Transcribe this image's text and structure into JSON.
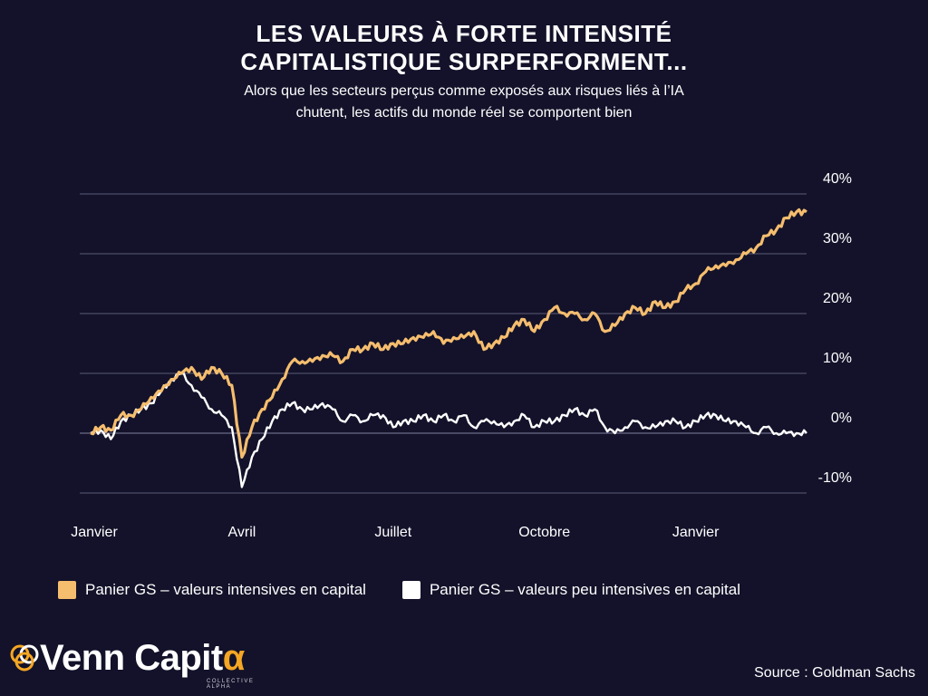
{
  "header": {
    "title_line1": "LES VALEURS À FORTE INTENSITÉ",
    "title_line2": "CAPITALISTIQUE SURPERFORMENT...",
    "subtitle_line1": "Alors que les secteurs perçus comme exposés aux risques liés à l’IA",
    "subtitle_line2": "chutent, les actifs du monde réel se comportent bien"
  },
  "chart_data": {
    "type": "line",
    "y_ticks": [
      -10,
      0,
      10,
      20,
      30,
      40
    ],
    "y_tick_labels": [
      "-10%",
      "0%",
      "10%",
      "20%",
      "30%",
      "40%"
    ],
    "ylim": [
      -10,
      40
    ],
    "y_axis_position": "right",
    "grid": true,
    "x_ticks": [
      {
        "label": "Janvier",
        "x": 0
      },
      {
        "label": "Avril",
        "x": 3
      },
      {
        "label": "Juillet",
        "x": 6
      },
      {
        "label": "Octobre",
        "x": 9
      },
      {
        "label": "Janvier",
        "x": 12
      }
    ],
    "xlim": [
      0,
      14.2
    ],
    "series": [
      {
        "name": "Panier GS – valeurs intensives en capital",
        "color": "#f5bd6e",
        "x": [
          0,
          0.2,
          0.4,
          0.6,
          0.8,
          1,
          1.2,
          1.4,
          1.6,
          1.8,
          2,
          2.2,
          2.4,
          2.6,
          2.8,
          3,
          3.2,
          3.4,
          3.6,
          3.8,
          4,
          4.2,
          4.4,
          4.6,
          4.8,
          5,
          5.2,
          5.4,
          5.6,
          5.8,
          6,
          6.2,
          6.4,
          6.6,
          6.8,
          7,
          7.2,
          7.4,
          7.6,
          7.8,
          8,
          8.2,
          8.4,
          8.6,
          8.8,
          9,
          9.2,
          9.4,
          9.6,
          9.8,
          10,
          10.2,
          10.4,
          10.6,
          10.8,
          11,
          11.2,
          11.4,
          11.6,
          11.8,
          12,
          12.2,
          12.4,
          12.6,
          12.8,
          13,
          13.2,
          13.4,
          13.6,
          13.8,
          14,
          14.2
        ],
        "values": [
          0,
          1,
          0.5,
          3,
          3,
          4,
          6,
          7,
          9,
          10,
          11,
          9,
          11,
          10,
          8,
          -4,
          1,
          4,
          6,
          9,
          12,
          12,
          12,
          13,
          13,
          12,
          14,
          14,
          15,
          14,
          15,
          15,
          16,
          16,
          17,
          15,
          16,
          16,
          17,
          14,
          15,
          16,
          18,
          19,
          17,
          19,
          21,
          20,
          20,
          19,
          20,
          17,
          18,
          20,
          21,
          20,
          22,
          21,
          22,
          24,
          25,
          27,
          28,
          28,
          29,
          30,
          31,
          33,
          34,
          36,
          37,
          37
        ]
      },
      {
        "name": "Panier GS – valeurs peu intensives en capital",
        "color": "#ffffff",
        "x": [
          0,
          0.2,
          0.4,
          0.6,
          0.8,
          1,
          1.2,
          1.4,
          1.6,
          1.8,
          2,
          2.2,
          2.4,
          2.6,
          2.8,
          3,
          3.2,
          3.4,
          3.6,
          3.8,
          4,
          4.2,
          4.4,
          4.6,
          4.8,
          5,
          5.2,
          5.4,
          5.6,
          5.8,
          6,
          6.2,
          6.4,
          6.6,
          6.8,
          7,
          7.2,
          7.4,
          7.6,
          7.8,
          8,
          8.2,
          8.4,
          8.6,
          8.8,
          9,
          9.2,
          9.4,
          9.6,
          9.8,
          10,
          10.2,
          10.4,
          10.6,
          10.8,
          11,
          11.2,
          11.4,
          11.6,
          11.8,
          12,
          12.2,
          12.4,
          12.6,
          12.8,
          13,
          13.2,
          13.4,
          13.6,
          13.8,
          14,
          14.2
        ],
        "values": [
          0,
          0.5,
          -1,
          2,
          3,
          4,
          5,
          7,
          9,
          10,
          8,
          6,
          4,
          3,
          1,
          -9,
          -4,
          -1,
          2,
          4,
          5,
          4,
          4,
          5,
          4,
          2,
          3,
          2,
          3,
          3,
          1,
          2,
          2,
          3,
          2,
          3,
          2,
          3,
          1,
          2,
          2,
          1,
          2,
          3,
          1,
          2,
          2,
          3,
          4,
          3,
          4,
          1,
          0,
          1,
          2,
          1,
          1,
          2,
          2,
          1,
          2,
          3,
          3,
          2,
          2,
          1,
          0,
          1,
          0,
          0,
          0,
          0
        ]
      }
    ]
  },
  "legend": {
    "item1_label": "Panier GS – valeurs intensives en capital",
    "item1_color": "#f5bd6e",
    "item2_label": "Panier GS – valeurs peu intensives en capital",
    "item2_color": "#ffffff"
  },
  "footer": {
    "logo_text": "Venn Capit",
    "logo_alpha": "α",
    "logo_sub": "COLLECTIVE ALPHA",
    "source": "Source : Goldman Sachs"
  },
  "colors": {
    "background": "#13122a",
    "accent": "#f5bd6e",
    "grid": "#5e5c78",
    "logo_mark": "#f5a623"
  }
}
